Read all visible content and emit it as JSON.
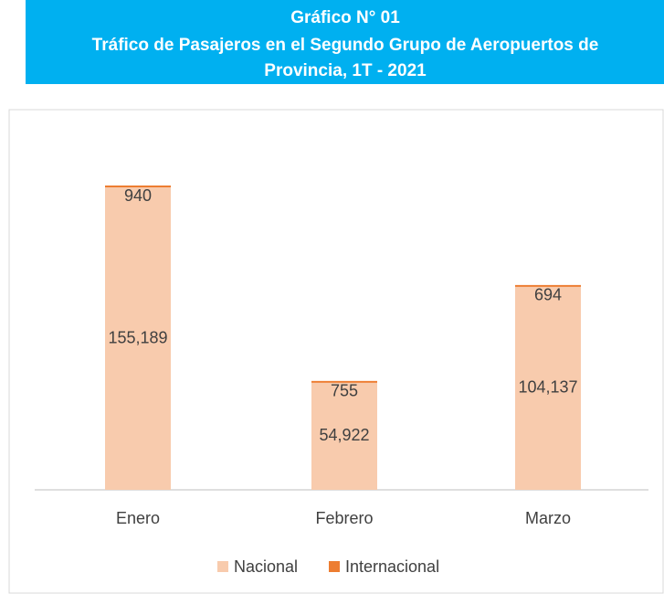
{
  "chart_data": {
    "type": "stacked_bar",
    "title": [
      "Gráfico N° 01",
      "Tráfico de Pasajeros en el Segundo Grupo de Aeropuertos de",
      "Provincia, 1T - 2021"
    ],
    "categories": [
      "Enero",
      "Febrero",
      "Marzo"
    ],
    "series": [
      {
        "name": "Nacional",
        "color": "#f8cbad",
        "values": [
          155189,
          54922,
          104137
        ],
        "value_labels": [
          "155,189",
          "54,922",
          "104,137"
        ]
      },
      {
        "name": "Internacional",
        "color": "#ed7d31",
        "values": [
          940,
          755,
          694
        ]
      }
    ],
    "legend": "bottom"
  }
}
